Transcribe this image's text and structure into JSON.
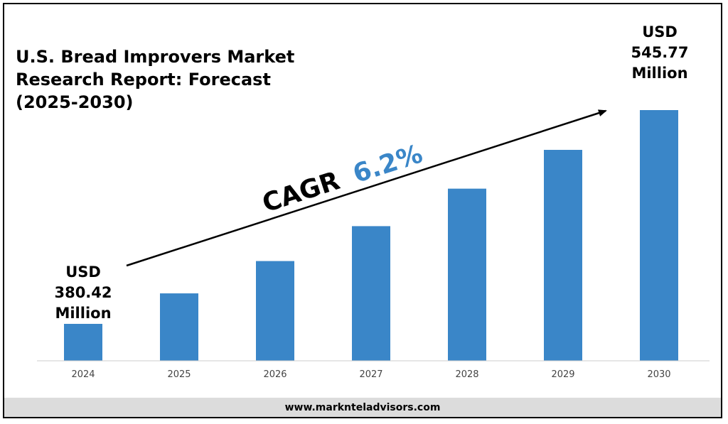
{
  "title_lines": [
    "U.S. Bread Improvers Market",
    "Research Report: Forecast",
    "(2025-2030)"
  ],
  "footer": {
    "url": "www.marknteladvisors.com"
  },
  "colors": {
    "bar": "#3a86c8",
    "cagr_value": "#3a86c8",
    "text": "#000000",
    "footer_bg": "#dcdcdc"
  },
  "cagr": {
    "label": "CAGR",
    "value": "6.2%"
  },
  "start_callout": [
    "USD",
    "380.42",
    "Million"
  ],
  "end_callout": [
    "USD",
    "545.77",
    "Million"
  ],
  "chart_data": {
    "type": "bar",
    "title": "U.S. Bread Improvers Market Research Report: Forecast (2025-2030)",
    "categories": [
      "2024",
      "2025",
      "2026",
      "2027",
      "2028",
      "2029",
      "2030"
    ],
    "values": [
      380.42,
      404,
      429,
      456,
      485,
      515,
      545.77
    ],
    "unit": "USD Million",
    "ylim": [
      350,
      560
    ],
    "grid": false,
    "legend": "none"
  }
}
